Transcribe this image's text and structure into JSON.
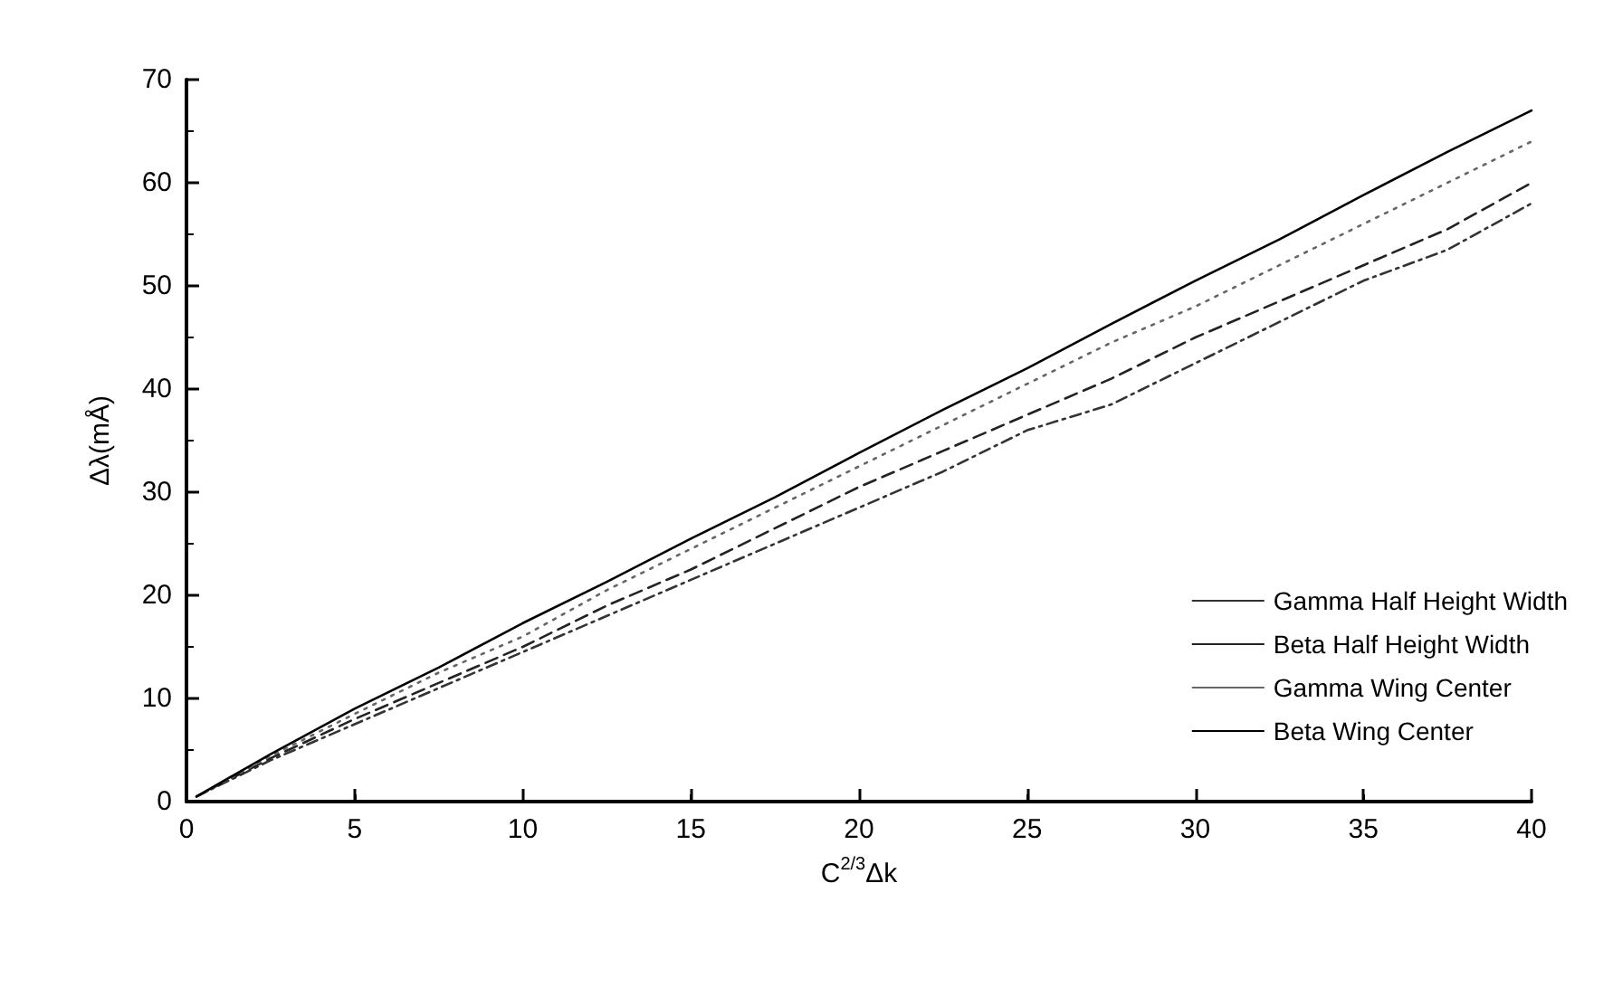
{
  "chart_data": {
    "type": "line",
    "xlabel": "C$^{2/3}$Δk",
    "ylabel": "Δλ(mÅ)",
    "xlim": [
      0,
      40
    ],
    "xticks": [
      0,
      5,
      10,
      15,
      20,
      25,
      30,
      35,
      40
    ],
    "ylim": [
      0,
      70
    ],
    "yticks": [
      0,
      10,
      20,
      30,
      40,
      50,
      60,
      70
    ],
    "grid": false,
    "legend": "right",
    "marker": "none",
    "x": [
      0.3,
      2.5,
      5,
      7.5,
      10,
      12.5,
      15,
      17.5,
      20,
      22.5,
      25,
      27.5,
      30,
      32.5,
      35,
      37.5,
      40
    ],
    "series": [
      {
        "name": "Gamma Half Height Width",
        "color": "#333333",
        "line_style": "dashdot",
        "values": [
          0.5,
          4,
          7.5,
          11,
          14.5,
          18,
          21.5,
          25,
          28.5,
          32,
          36,
          38.5,
          42.5,
          46.5,
          50.5,
          53.5,
          58
        ]
      },
      {
        "name": "Beta Half Height Width",
        "color": "#222222",
        "line_style": "dashed",
        "values": [
          0.5,
          4.2,
          8,
          11.5,
          15,
          19,
          22.5,
          26.5,
          30.5,
          34,
          37.5,
          41,
          45,
          48.5,
          52,
          55.5,
          60
        ]
      },
      {
        "name": "Gamma Wing Center",
        "color": "#666666",
        "line_style": "dotted",
        "values": [
          0.5,
          4.4,
          8.5,
          12.5,
          16,
          20.5,
          24.5,
          28.5,
          32.5,
          36.5,
          40.5,
          44.5,
          48,
          52,
          56,
          60,
          64
        ]
      },
      {
        "name": "Beta Wing Center",
        "color": "#000000",
        "line_style": "solid",
        "values": [
          0.5,
          4.6,
          9,
          13,
          17.3,
          21.3,
          25.5,
          29.5,
          33.8,
          38,
          42,
          46.3,
          50.5,
          54.5,
          58.8,
          63,
          67
        ]
      }
    ]
  }
}
